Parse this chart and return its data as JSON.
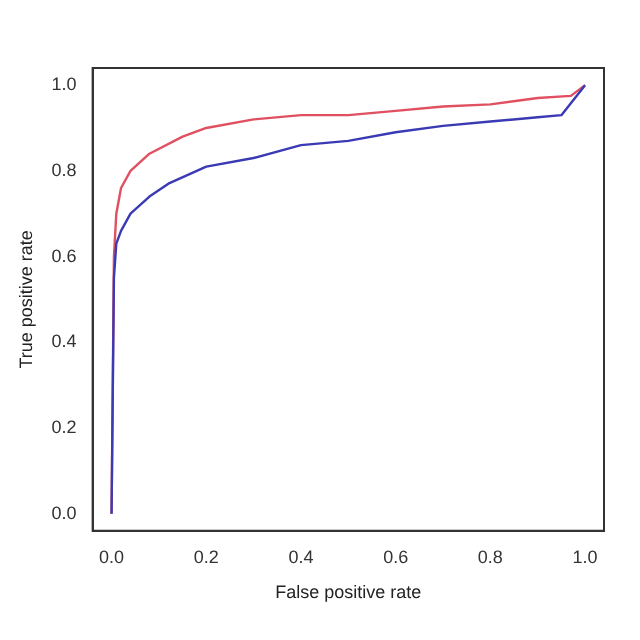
{
  "chart_data": {
    "type": "line",
    "xlabel": "False positive rate",
    "ylabel": "True positive rate",
    "xlim": [
      -0.04,
      1.04
    ],
    "ylim": [
      -0.04,
      1.04
    ],
    "xticks": [
      {
        "value": 0,
        "label": "0.0"
      },
      {
        "value": 0.2,
        "label": "0.2"
      },
      {
        "value": 0.4,
        "label": "0.4"
      },
      {
        "value": 0.6,
        "label": "0.6"
      },
      {
        "value": 0.8,
        "label": "0.8"
      },
      {
        "value": 1,
        "label": "1.0"
      }
    ],
    "yticks": [
      {
        "value": 0,
        "label": "0.0"
      },
      {
        "value": 0.2,
        "label": "0.2"
      },
      {
        "value": 0.4,
        "label": "0.4"
      },
      {
        "value": 0.6,
        "label": "0.6"
      },
      {
        "value": 0.8,
        "label": "0.8"
      },
      {
        "value": 1,
        "label": "1.0"
      }
    ],
    "grid": false,
    "legend": false,
    "marker": "none",
    "line_style": "solid",
    "series": [
      {
        "color": "#3a3ab4",
        "x": [
          0,
          0.005,
          0.01,
          0.02,
          0.04,
          0.08,
          0.12,
          0.2,
          0.3,
          0.4,
          0.5,
          0.6,
          0.7,
          0.8,
          0.9,
          0.95,
          1
        ],
        "values": [
          0,
          0.55,
          0.63,
          0.66,
          0.7,
          0.74,
          0.77,
          0.81,
          0.83,
          0.86,
          0.87,
          0.89,
          0.905,
          0.915,
          0.925,
          0.93,
          1
        ]
      },
      {
        "color": "#e05060",
        "x": [
          0,
          0.005,
          0.01,
          0.02,
          0.04,
          0.08,
          0.15,
          0.2,
          0.3,
          0.4,
          0.5,
          0.6,
          0.7,
          0.8,
          0.9,
          0.97,
          1
        ],
        "values": [
          0,
          0.6,
          0.7,
          0.76,
          0.8,
          0.84,
          0.88,
          0.9,
          0.92,
          0.93,
          0.93,
          0.94,
          0.95,
          0.955,
          0.97,
          0.975,
          1
        ]
      }
    ]
  }
}
